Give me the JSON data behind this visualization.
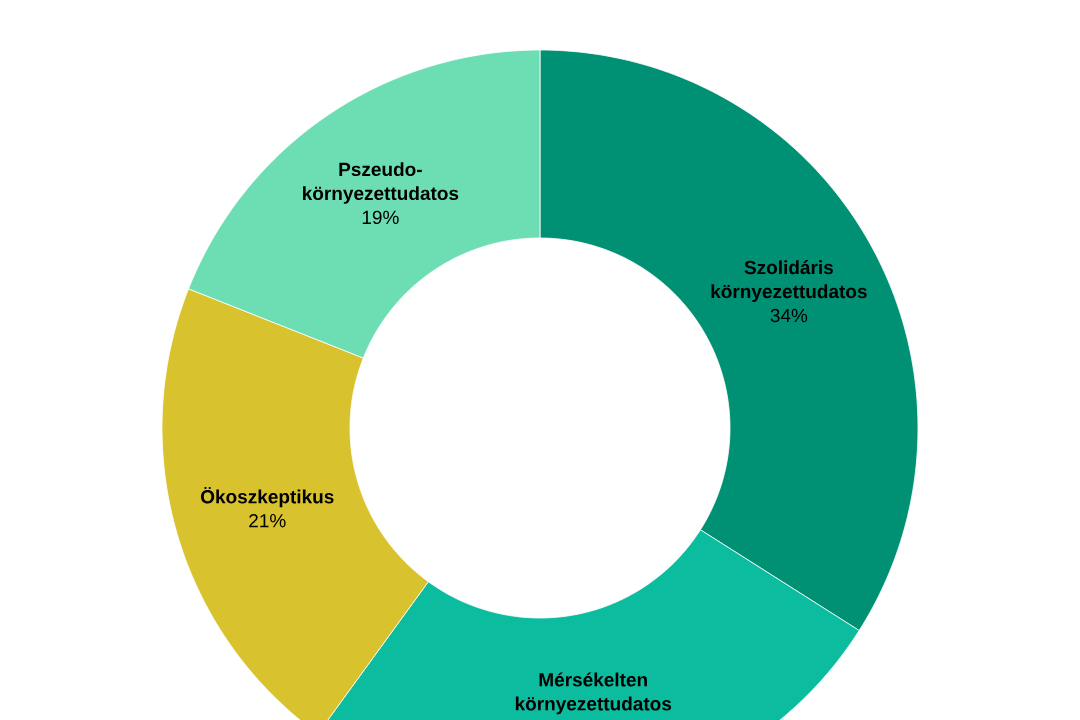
{
  "chart_data": {
    "type": "donut",
    "categories": [
      "Szolidáris környezettudatos",
      "Mérsékelten környezettudatos",
      "Ökoszkeptikus",
      "Pszeudo-környezettudatos"
    ],
    "values": [
      34,
      26,
      21,
      19
    ],
    "value_labels": [
      "34%",
      null,
      "21%",
      "19%"
    ],
    "colors": [
      "#009174",
      "#0bbc9f",
      "#d8c22e",
      "#6ddeb3"
    ]
  }
}
